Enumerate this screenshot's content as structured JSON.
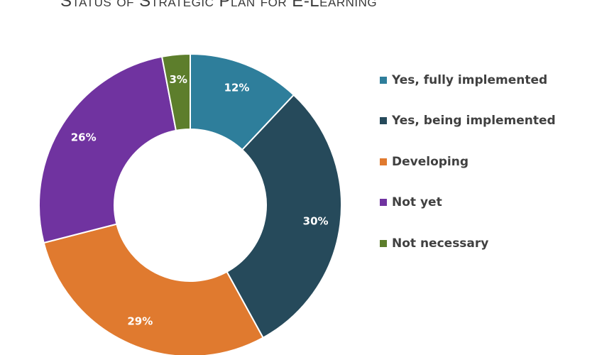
{
  "chart_data": {
    "type": "pie",
    "variant": "donut",
    "title": "Status of Strategic Plan for E-Learning",
    "categories": [
      "Yes, fully implemented",
      "Yes, being implemented",
      "Developing",
      "Not yet",
      "Not necessary"
    ],
    "values": [
      12,
      30,
      29,
      26,
      3
    ],
    "labels": [
      "12%",
      "30%",
      "29%",
      "26%",
      "3%"
    ],
    "colors": [
      "#2e7e9b",
      "#264a5b",
      "#e07a2f",
      "#7033a0",
      "#5d7e2c"
    ],
    "unit": "%",
    "legend_position": "right",
    "start": "top, clockwise"
  }
}
